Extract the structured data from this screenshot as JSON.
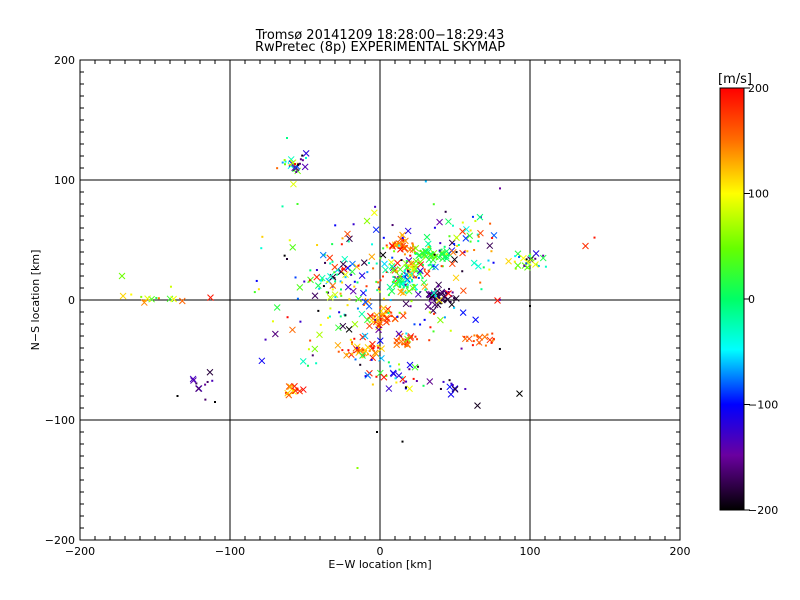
{
  "chart_data": {
    "type": "scatter",
    "title": "Tromsø 20141209 18:28:00−18:29:43",
    "subtitle": "RwPretec (8p) EXPERIMENTAL SKYMAP",
    "xlabel": "E−W location [km]",
    "ylabel": "N−S location [km]",
    "xlim": [
      -200,
      200
    ],
    "ylim": [
      -200,
      200
    ],
    "xticks": [
      -200,
      -100,
      0,
      100,
      200
    ],
    "yticks": [
      -200,
      -100,
      0,
      100,
      200
    ],
    "xtick_labels": [
      "−200",
      "−100",
      "0",
      "100",
      "200"
    ],
    "ytick_labels": [
      "−200",
      "−100",
      "0",
      "100",
      "200"
    ],
    "grid": true,
    "grid_lines_x": [
      -100,
      0,
      100
    ],
    "grid_lines_y": [
      -100,
      0,
      100
    ],
    "markers": [
      "x",
      "dot"
    ],
    "colorbar": {
      "label": "[m/s]",
      "range": [
        -200,
        200
      ],
      "ticks": [
        200,
        100,
        0,
        -100,
        -200
      ],
      "tick_labels": [
        "200",
        "100",
        "0",
        "−100",
        "−200"
      ],
      "colormap": "rainbow with black low end"
    },
    "clusters": [
      {
        "cx": -58,
        "cy": 113,
        "sx": 6,
        "sy": 5,
        "n": 30,
        "vmin": -200,
        "vmax": 200
      },
      {
        "cx": 15,
        "cy": 45,
        "sx": 5,
        "sy": 4,
        "n": 35,
        "vmin": 120,
        "vmax": 200
      },
      {
        "cx": 35,
        "cy": 38,
        "sx": 8,
        "sy": 6,
        "n": 45,
        "vmin": -20,
        "vmax": 60
      },
      {
        "cx": 20,
        "cy": 25,
        "sx": 10,
        "sy": 8,
        "n": 60,
        "vmin": -150,
        "vmax": 200
      },
      {
        "cx": 15,
        "cy": 12,
        "sx": 10,
        "sy": 6,
        "n": 40,
        "vmin": -60,
        "vmax": 60
      },
      {
        "cx": 40,
        "cy": 2,
        "sx": 8,
        "sy": 6,
        "n": 55,
        "vmin": -200,
        "vmax": -140
      },
      {
        "cx": 2,
        "cy": -15,
        "sx": 7,
        "sy": 6,
        "n": 45,
        "vmin": 100,
        "vmax": 200
      },
      {
        "cx": 15,
        "cy": -35,
        "sx": 6,
        "sy": 4,
        "n": 20,
        "vmin": 140,
        "vmax": 200
      },
      {
        "cx": -10,
        "cy": -40,
        "sx": 12,
        "sy": 6,
        "n": 40,
        "vmin": 100,
        "vmax": 200
      },
      {
        "cx": 70,
        "cy": -32,
        "sx": 8,
        "sy": 4,
        "n": 20,
        "vmin": 130,
        "vmax": 200
      },
      {
        "cx": 100,
        "cy": 32,
        "sx": 8,
        "sy": 6,
        "n": 30,
        "vmin": -200,
        "vmax": 120
      },
      {
        "cx": -58,
        "cy": -75,
        "sx": 4,
        "sy": 4,
        "n": 18,
        "vmin": 100,
        "vmax": 200
      },
      {
        "cx": 50,
        "cy": -72,
        "sx": 6,
        "sy": 5,
        "n": 10,
        "vmin": -200,
        "vmax": -100
      },
      {
        "cx": -30,
        "cy": 20,
        "sx": 12,
        "sy": 10,
        "n": 40,
        "vmin": -200,
        "vmax": 200
      },
      {
        "cx": 55,
        "cy": 50,
        "sx": 15,
        "sy": 15,
        "n": 40,
        "vmin": -200,
        "vmax": 200
      },
      {
        "cx": 10,
        "cy": -65,
        "sx": 15,
        "sy": 10,
        "n": 30,
        "vmin": -200,
        "vmax": 200
      },
      {
        "cx": 0,
        "cy": 10,
        "sx": 55,
        "sy": 45,
        "n": 220,
        "vmin": -200,
        "vmax": 200
      },
      {
        "cx": -120,
        "cy": -70,
        "sx": 12,
        "sy": 8,
        "n": 10,
        "vmin": -200,
        "vmax": -120
      },
      {
        "cx": -150,
        "cy": 5,
        "sx": 18,
        "sy": 8,
        "n": 14,
        "vmin": 0,
        "vmax": 160
      }
    ],
    "points": [
      {
        "x": -172,
        "y": 20,
        "v": 50
      },
      {
        "x": -62,
        "y": 135,
        "v": -10
      },
      {
        "x": -2,
        "y": -110,
        "v": -200
      },
      {
        "x": 15,
        "y": -118,
        "v": -200
      },
      {
        "x": -15,
        "y": -140,
        "v": 60
      },
      {
        "x": 143,
        "y": 52,
        "v": 190
      },
      {
        "x": 137,
        "y": 45,
        "v": 180
      },
      {
        "x": 100,
        "y": -5,
        "v": -200
      },
      {
        "x": 93,
        "y": -78,
        "v": -200
      },
      {
        "x": 65,
        "y": -88,
        "v": -190
      },
      {
        "x": -65,
        "y": 78,
        "v": -20
      },
      {
        "x": -110,
        "y": -85,
        "v": -200
      },
      {
        "x": -135,
        "y": -80,
        "v": -200
      },
      {
        "x": -113,
        "y": 2,
        "v": 190
      },
      {
        "x": 80,
        "y": 93,
        "v": -150
      },
      {
        "x": -55,
        "y": 80,
        "v": 30
      }
    ]
  }
}
